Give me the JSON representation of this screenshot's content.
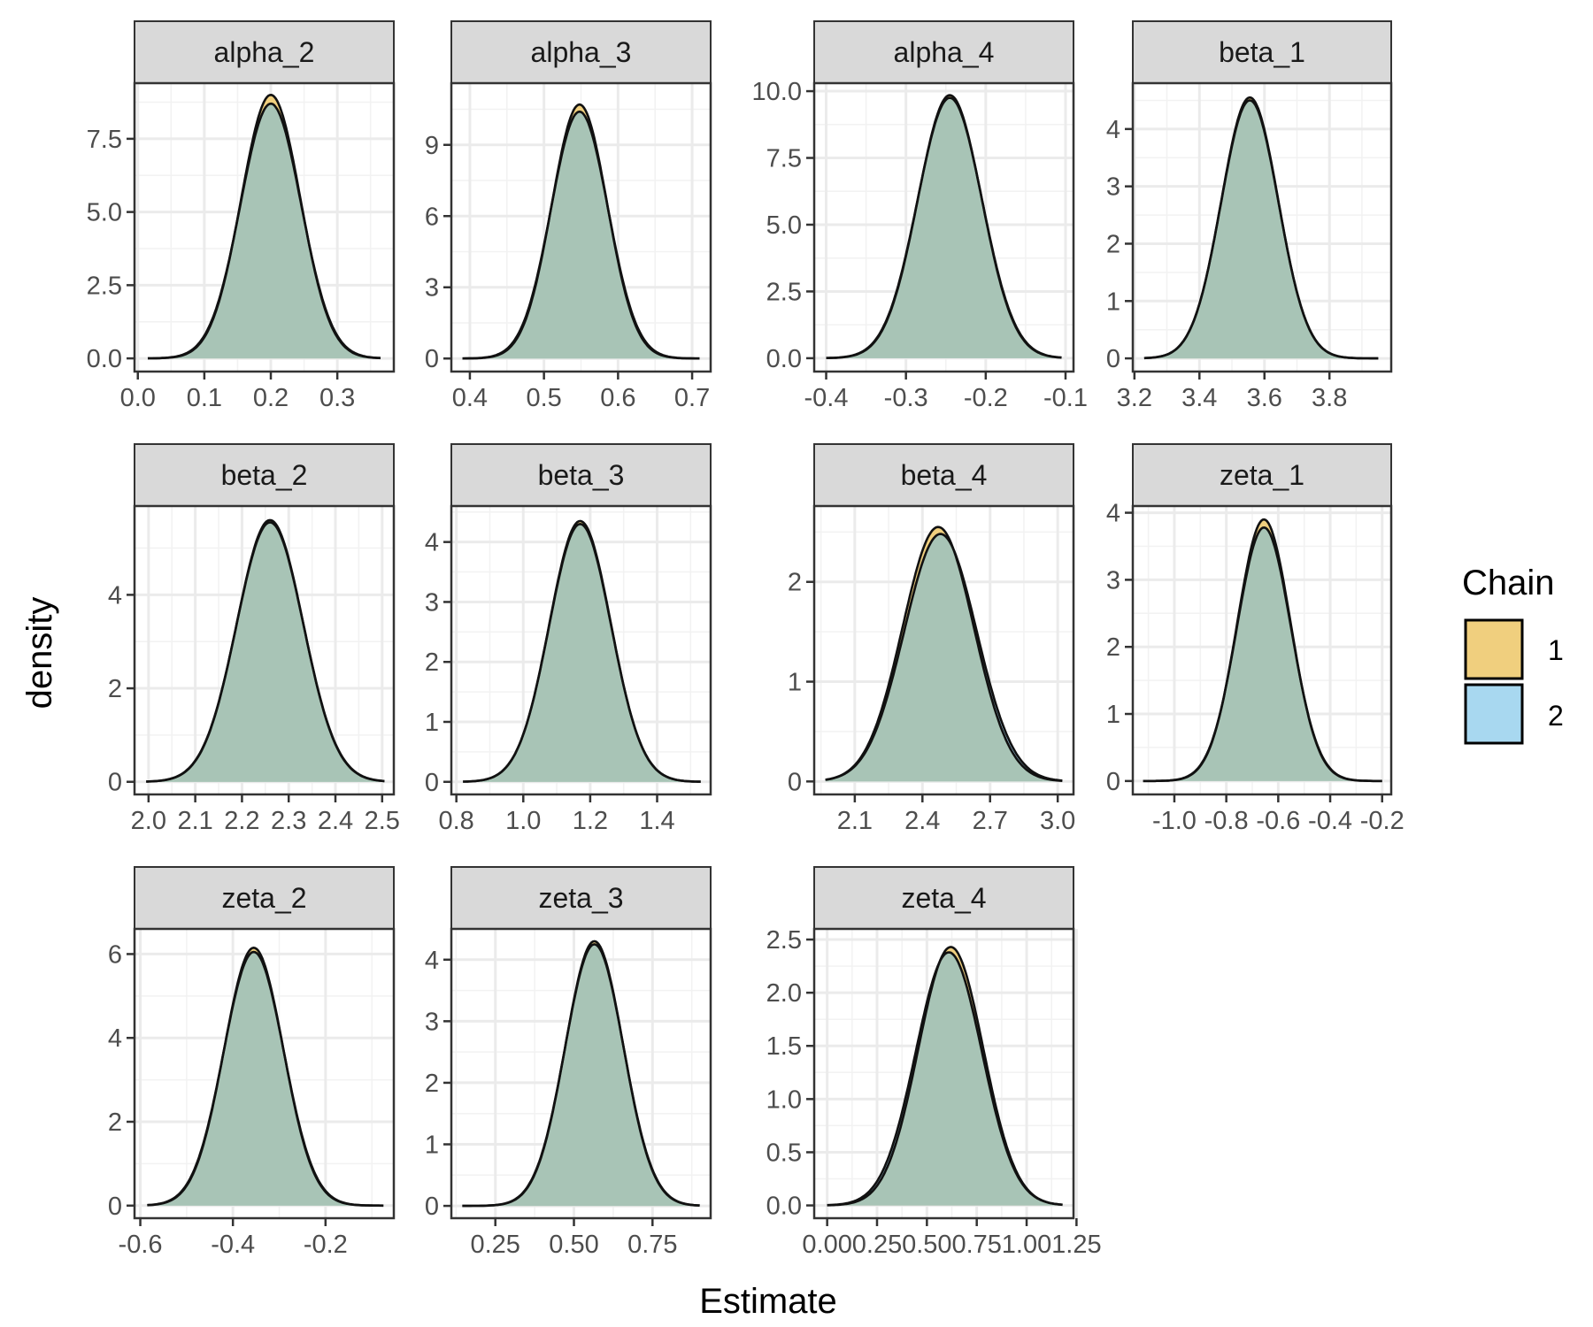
{
  "chart_data": {
    "type": "area",
    "xlabel": "Estimate",
    "ylabel": "density",
    "legend": {
      "title": "Chain",
      "position": "right",
      "entries": [
        {
          "label": "1",
          "color": "#F0CF7E"
        },
        {
          "label": "2",
          "color": "#A8D8F0"
        }
      ]
    },
    "overlap_color": "#A8C4B6",
    "grid": true,
    "panels": [
      {
        "title": "alpha_2",
        "xlim": [
          -0.005,
          0.385
        ],
        "ylim": [
          -0.45,
          9.4
        ],
        "xticks": [
          0.0,
          0.1,
          0.2,
          0.3
        ],
        "xtick_labels": [
          "0.0",
          "0.1",
          "0.2",
          "0.3"
        ],
        "yticks": [
          0,
          2.5,
          5.0,
          7.5
        ],
        "ytick_labels": [
          "0.0",
          "2.5",
          "5.0",
          "7.5"
        ],
        "x_range": [
          0.015,
          0.365
        ],
        "series": [
          {
            "name": "1",
            "mean": 0.2,
            "sd": 0.0445,
            "peak": 9.0
          },
          {
            "name": "2",
            "mean": 0.2,
            "sd": 0.0455,
            "peak": 8.7
          }
        ]
      },
      {
        "title": "alpha_3",
        "xlim": [
          0.375,
          0.725
        ],
        "ylim": [
          -0.55,
          11.6
        ],
        "xticks": [
          0.4,
          0.5,
          0.6,
          0.7
        ],
        "xtick_labels": [
          "0.4",
          "0.5",
          "0.6",
          "0.7"
        ],
        "yticks": [
          0,
          3,
          6,
          9
        ],
        "ytick_labels": [
          "0",
          "3",
          "6",
          "9"
        ],
        "x_range": [
          0.39,
          0.71
        ],
        "series": [
          {
            "name": "1",
            "mean": 0.548,
            "sd": 0.0375,
            "peak": 10.7
          },
          {
            "name": "2",
            "mean": 0.548,
            "sd": 0.0385,
            "peak": 10.4
          }
        ]
      },
      {
        "title": "alpha_4",
        "xlim": [
          -0.415,
          -0.09
        ],
        "ylim": [
          -0.5,
          10.3
        ],
        "xticks": [
          -0.4,
          -0.3,
          -0.2,
          -0.1
        ],
        "xtick_labels": [
          "-0.4",
          "-0.3",
          "-0.2",
          "-0.1"
        ],
        "yticks": [
          0,
          2.5,
          5.0,
          7.5,
          10.0
        ],
        "ytick_labels": [
          "0.0",
          "2.5",
          "5.0",
          "7.5",
          "10.0"
        ],
        "x_range": [
          -0.4,
          -0.105
        ],
        "series": [
          {
            "name": "1",
            "mean": -0.245,
            "sd": 0.04,
            "peak": 9.85
          },
          {
            "name": "2",
            "mean": -0.245,
            "sd": 0.0405,
            "peak": 9.75
          }
        ]
      },
      {
        "title": "beta_1",
        "xlim": [
          3.195,
          3.99
        ],
        "ylim": [
          -0.23,
          4.8
        ],
        "xticks": [
          3.2,
          3.4,
          3.6,
          3.8
        ],
        "xtick_labels": [
          "3.2",
          "3.4",
          "3.6",
          "3.8"
        ],
        "yticks": [
          0,
          1,
          2,
          3,
          4
        ],
        "ytick_labels": [
          "0",
          "1",
          "2",
          "3",
          "4"
        ],
        "x_range": [
          3.23,
          3.95
        ],
        "series": [
          {
            "name": "1",
            "mean": 3.555,
            "sd": 0.0875,
            "peak": 4.55
          },
          {
            "name": "2",
            "mean": 3.555,
            "sd": 0.088,
            "peak": 4.5
          }
        ]
      },
      {
        "title": "beta_2",
        "xlim": [
          1.97,
          2.525
        ],
        "ylim": [
          -0.27,
          5.9
        ],
        "xticks": [
          2.0,
          2.1,
          2.2,
          2.3,
          2.4,
          2.5
        ],
        "xtick_labels": [
          "2.0",
          "2.1",
          "2.2",
          "2.3",
          "2.4",
          "2.5"
        ],
        "yticks": [
          0,
          2,
          4
        ],
        "ytick_labels": [
          "0",
          "2",
          "4"
        ],
        "x_range": [
          1.995,
          2.505
        ],
        "series": [
          {
            "name": "1",
            "mean": 2.26,
            "sd": 0.071,
            "peak": 5.6
          },
          {
            "name": "2",
            "mean": 2.26,
            "sd": 0.0715,
            "peak": 5.55
          }
        ]
      },
      {
        "title": "beta_3",
        "xlim": [
          0.785,
          1.56
        ],
        "ylim": [
          -0.21,
          4.6
        ],
        "xticks": [
          0.8,
          1.0,
          1.2,
          1.4
        ],
        "xtick_labels": [
          "0.8",
          "1.0",
          "1.2",
          "1.4"
        ],
        "yticks": [
          0,
          1,
          2,
          3,
          4
        ],
        "ytick_labels": [
          "0",
          "1",
          "2",
          "3",
          "4"
        ],
        "x_range": [
          0.82,
          1.53
        ],
        "series": [
          {
            "name": "1",
            "mean": 1.17,
            "sd": 0.092,
            "peak": 4.35
          },
          {
            "name": "2",
            "mean": 1.17,
            "sd": 0.0925,
            "peak": 4.3
          }
        ]
      },
      {
        "title": "beta_4",
        "xlim": [
          1.92,
          3.07
        ],
        "ylim": [
          -0.13,
          2.76
        ],
        "xticks": [
          2.1,
          2.4,
          2.7,
          3.0
        ],
        "xtick_labels": [
          "2.1",
          "2.4",
          "2.7",
          "3.0"
        ],
        "yticks": [
          0,
          1,
          2
        ],
        "ytick_labels": [
          "0",
          "1",
          "2"
        ],
        "x_range": [
          1.97,
          3.02
        ],
        "series": [
          {
            "name": "1",
            "mean": 2.47,
            "sd": 0.158,
            "peak": 2.55
          },
          {
            "name": "2",
            "mean": 2.48,
            "sd": 0.161,
            "peak": 2.48
          }
        ]
      },
      {
        "title": "zeta_1",
        "xlim": [
          -1.16,
          -0.165
        ],
        "ylim": [
          -0.2,
          4.1
        ],
        "xticks": [
          -1.0,
          -0.8,
          -0.6,
          -0.4,
          -0.2
        ],
        "xtick_labels": [
          "-1.0",
          "-0.8",
          "-0.6",
          "-0.4",
          "-0.2"
        ],
        "yticks": [
          0,
          1,
          2,
          3,
          4
        ],
        "ytick_labels": [
          "0",
          "1",
          "2",
          "3",
          "4"
        ],
        "x_range": [
          -1.12,
          -0.2
        ],
        "series": [
          {
            "name": "1",
            "mean": -0.655,
            "sd": 0.1025,
            "peak": 3.9
          },
          {
            "name": "2",
            "mean": -0.655,
            "sd": 0.104,
            "peak": 3.78
          }
        ]
      },
      {
        "title": "zeta_2",
        "xlim": [
          -0.6125,
          -0.0525
        ],
        "ylim": [
          -0.3,
          6.6
        ],
        "xticks": [
          -0.6,
          -0.4,
          -0.2
        ],
        "xtick_labels": [
          "-0.6",
          "-0.4",
          "-0.2"
        ],
        "yticks": [
          0,
          2,
          4,
          6
        ],
        "ytick_labels": [
          "0",
          "2",
          "4",
          "6"
        ],
        "x_range": [
          -0.585,
          -0.075
        ],
        "series": [
          {
            "name": "1",
            "mean": -0.355,
            "sd": 0.064,
            "peak": 6.15
          },
          {
            "name": "2",
            "mean": -0.355,
            "sd": 0.065,
            "peak": 6.05
          }
        ]
      },
      {
        "title": "zeta_3",
        "xlim": [
          0.11,
          0.935
        ],
        "ylim": [
          -0.2,
          4.5
        ],
        "xticks": [
          0.25,
          0.5,
          0.75
        ],
        "xtick_labels": [
          "0.25",
          "0.50",
          "0.75"
        ],
        "yticks": [
          0,
          1,
          2,
          3,
          4
        ],
        "ytick_labels": [
          "0",
          "1",
          "2",
          "3",
          "4"
        ],
        "x_range": [
          0.145,
          0.9
        ],
        "series": [
          {
            "name": "1",
            "mean": 0.565,
            "sd": 0.092,
            "peak": 4.3
          },
          {
            "name": "2",
            "mean": 0.565,
            "sd": 0.093,
            "peak": 4.25
          }
        ]
      },
      {
        "title": "zeta_4",
        "xlim": [
          -0.065,
          1.235
        ],
        "ylim": [
          -0.12,
          2.6
        ],
        "xticks": [
          0.0,
          0.25,
          0.5,
          0.75,
          1.0,
          1.25
        ],
        "xtick_labels": [
          "0.00",
          "0.25",
          "0.50",
          "0.75",
          "1.00",
          "1.25"
        ],
        "yticks": [
          0,
          0.5,
          1.0,
          1.5,
          2.0,
          2.5
        ],
        "ytick_labels": [
          "0.0",
          "0.5",
          "1.0",
          "1.5",
          "2.0",
          "2.5"
        ],
        "x_range": [
          0.0,
          1.18
        ],
        "series": [
          {
            "name": "1",
            "mean": 0.62,
            "sd": 0.163,
            "peak": 2.43
          },
          {
            "name": "2",
            "mean": 0.61,
            "sd": 0.166,
            "peak": 2.38
          }
        ]
      }
    ]
  }
}
